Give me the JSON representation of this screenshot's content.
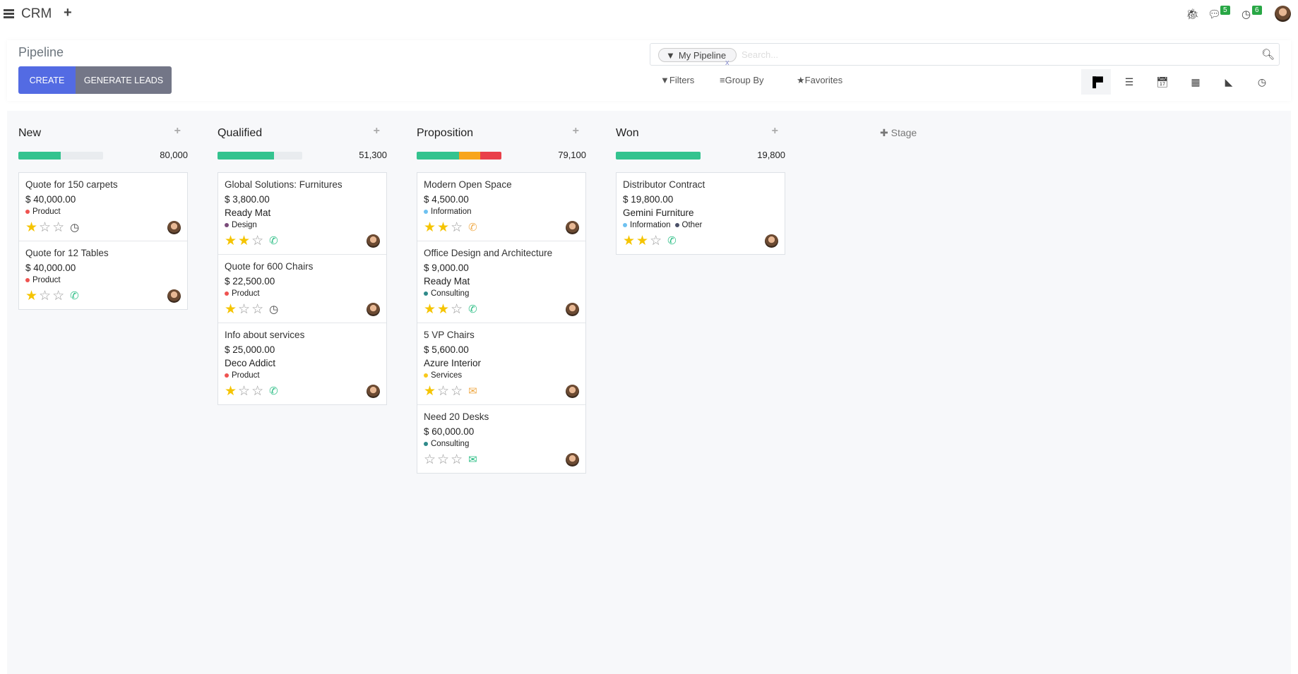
{
  "topbar": {
    "app": "CRM",
    "messages_count": "5",
    "activities_count": "6"
  },
  "control": {
    "title": "Pipeline",
    "create": "CREATE",
    "generate": "GENERATE LEADS",
    "facet": "My Pipeline",
    "search_placeholder": "Search...",
    "filters": "Filters",
    "group_by": "Group By",
    "favorites": "Favorites",
    "views": [
      "kanban",
      "list",
      "calendar",
      "pivot",
      "graph",
      "activity"
    ],
    "active_view": "kanban"
  },
  "colors": {
    "accent": "#536be3",
    "secondary": "#737687",
    "green": "#34c38f",
    "orange": "#f8a51c",
    "red": "#e9404a",
    "star": "#f5c400"
  },
  "add_stage": "Stage",
  "columns": [
    {
      "title": "New",
      "total": "80,000",
      "progress": [
        {
          "color": "#34c38f",
          "pct": 50
        }
      ],
      "cards": [
        {
          "name": "Quote for 150 carpets",
          "amount": "$ 40,000.00",
          "company": "",
          "tags": [
            {
              "label": "Product",
              "color": "#ef5350"
            }
          ],
          "stars": 1,
          "activity": "clock"
        },
        {
          "name": "Quote for 12 Tables",
          "amount": "$ 40,000.00",
          "company": "",
          "tags": [
            {
              "label": "Product",
              "color": "#ef5350"
            }
          ],
          "stars": 1,
          "activity": "phone"
        }
      ]
    },
    {
      "title": "Qualified",
      "total": "51,300",
      "progress": [
        {
          "color": "#34c38f",
          "pct": 67
        }
      ],
      "cards": [
        {
          "name": "Global Solutions: Furnitures",
          "amount": "$ 3,800.00",
          "company": "Ready Mat",
          "tags": [
            {
              "label": "Design",
              "color": "#7a4b7a"
            }
          ],
          "stars": 2,
          "activity": "phone"
        },
        {
          "name": "Quote for 600 Chairs",
          "amount": "$ 22,500.00",
          "company": "",
          "tags": [
            {
              "label": "Product",
              "color": "#ef5350"
            }
          ],
          "stars": 1,
          "activity": "clock"
        },
        {
          "name": "Info about services",
          "amount": "$ 25,000.00",
          "company": "Deco Addict",
          "tags": [
            {
              "label": "Product",
              "color": "#ef5350"
            }
          ],
          "stars": 1,
          "activity": "phone"
        }
      ]
    },
    {
      "title": "Proposition",
      "total": "79,100",
      "progress": [
        {
          "color": "#34c38f",
          "pct": 50
        },
        {
          "color": "#f8a51c",
          "pct": 25
        },
        {
          "color": "#e9404a",
          "pct": 25
        }
      ],
      "cards": [
        {
          "name": "Modern Open Space",
          "amount": "$ 4,500.00",
          "company": "",
          "tags": [
            {
              "label": "Information",
              "color": "#6ec1f0"
            }
          ],
          "stars": 2,
          "activity": "phone-orange"
        },
        {
          "name": "Office Design and Architecture",
          "amount": "$ 9,000.00",
          "company": "Ready Mat",
          "tags": [
            {
              "label": "Consulting",
              "color": "#2f8a8a"
            }
          ],
          "stars": 2,
          "activity": "phone"
        },
        {
          "name": "5 VP Chairs",
          "amount": "$ 5,600.00",
          "company": "Azure Interior",
          "tags": [
            {
              "label": "Services",
              "color": "#f8c91c"
            }
          ],
          "stars": 1,
          "activity": "mail-orange"
        },
        {
          "name": "Need 20 Desks",
          "amount": "$ 60,000.00",
          "company": "",
          "tags": [
            {
              "label": "Consulting",
              "color": "#2f8a8a"
            }
          ],
          "stars": 0,
          "activity": "mail"
        }
      ]
    },
    {
      "title": "Won",
      "total": "19,800",
      "progress": [
        {
          "color": "#34c38f",
          "pct": 100
        }
      ],
      "cards": [
        {
          "name": "Distributor Contract",
          "amount": "$ 19,800.00",
          "company": "Gemini Furniture",
          "tags": [
            {
              "label": "Information",
              "color": "#6ec1f0"
            },
            {
              "label": "Other",
              "color": "#4a5068"
            }
          ],
          "stars": 2,
          "activity": "phone"
        }
      ]
    }
  ]
}
